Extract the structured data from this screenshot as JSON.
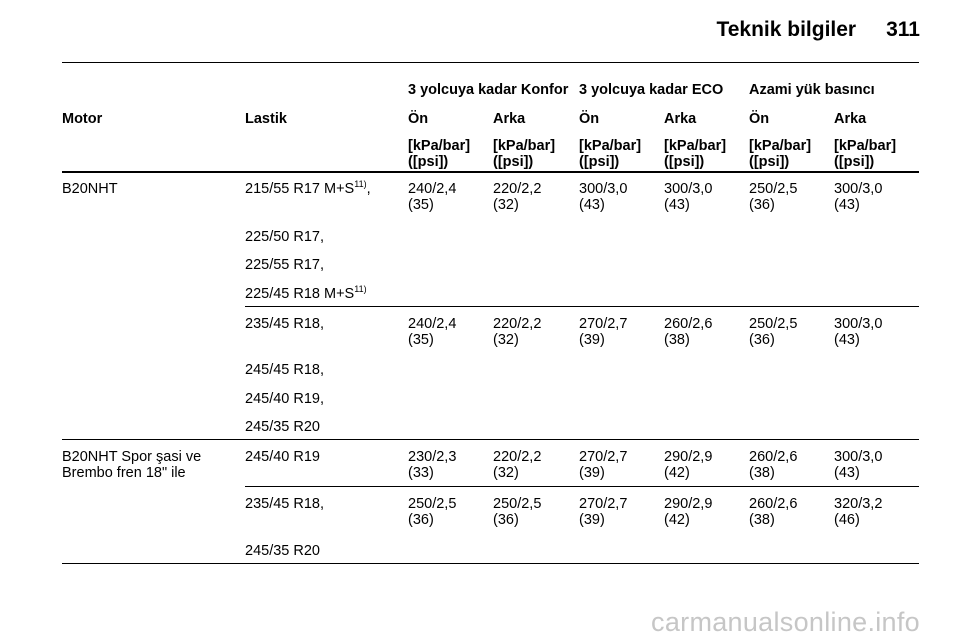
{
  "header": {
    "title": "Teknik bilgiler",
    "page_number": "311"
  },
  "table": {
    "group_headers": [
      "3 yolcuya kadar Konfor",
      "3 yolcuya kadar ECO",
      "Azami yük basıncı"
    ],
    "col_motor": "Motor",
    "col_lastik": "Lastik",
    "sub_headers": [
      "Ön",
      "Arka",
      "Ön",
      "Arka",
      "Ön",
      "Arka"
    ],
    "unit_line1": "[kPa/bar]",
    "unit_line2": "([psi])",
    "motor_1": "B20NHT",
    "motor_2_line1": "B20NHT Spor şasi ve",
    "motor_2_line2": "Brembo fren 18\" ile",
    "footnote": "11)",
    "tires": {
      "r1a": "215/55 R17 M+S",
      "r1a_suffix": ",",
      "r1b": "225/50 R17,",
      "r1c": "225/55 R17,",
      "r1d": "225/45 R18 M+S",
      "r2a": "235/45 R18,",
      "r2b": "245/45 R18,",
      "r2c": "245/40 R19,",
      "r2d": "245/35 R20",
      "r3a": "245/40 R19",
      "r4a": "235/45 R18,",
      "r4b": "245/35 R20"
    },
    "values": {
      "r1": [
        [
          "240/2,4",
          "(35)"
        ],
        [
          "220/2,2",
          "(32)"
        ],
        [
          "300/3,0",
          "(43)"
        ],
        [
          "300/3,0",
          "(43)"
        ],
        [
          "250/2,5",
          "(36)"
        ],
        [
          "300/3,0",
          "(43)"
        ]
      ],
      "r2": [
        [
          "240/2,4",
          "(35)"
        ],
        [
          "220/2,2",
          "(32)"
        ],
        [
          "270/2,7",
          "(39)"
        ],
        [
          "260/2,6",
          "(38)"
        ],
        [
          "250/2,5",
          "(36)"
        ],
        [
          "300/3,0",
          "(43)"
        ]
      ],
      "r3": [
        [
          "230/2,3",
          "(33)"
        ],
        [
          "220/2,2",
          "(32)"
        ],
        [
          "270/2,7",
          "(39)"
        ],
        [
          "290/2,9",
          "(42)"
        ],
        [
          "260/2,6",
          "(38)"
        ],
        [
          "300/3,0",
          "(43)"
        ]
      ],
      "r4": [
        [
          "250/2,5",
          "(36)"
        ],
        [
          "250/2,5",
          "(36)"
        ],
        [
          "270/2,7",
          "(39)"
        ],
        [
          "290/2,9",
          "(42)"
        ],
        [
          "260/2,6",
          "(38)"
        ],
        [
          "320/3,2",
          "(46)"
        ]
      ]
    }
  },
  "watermark": "carmanualsonline.info"
}
